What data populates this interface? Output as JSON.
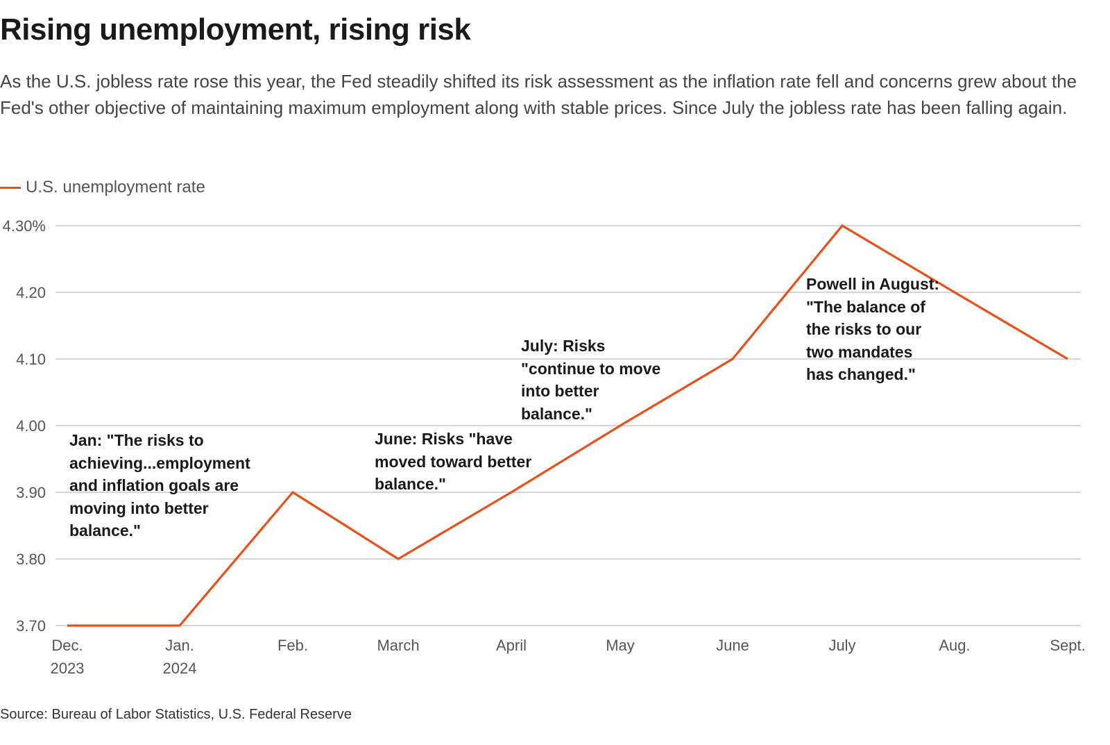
{
  "chart_data": {
    "type": "line",
    "title": "Rising unemployment, rising risk",
    "subtitle": "As the U.S. jobless rate rose this year, the Fed steadily shifted its risk assessment as the inflation rate fell and concerns grew about the Fed's other objective of maintaining maximum employment along with stable prices. Since July the jobless rate has been falling again.",
    "categories": [
      "Dec. 2023",
      "Jan. 2024",
      "Feb.",
      "March",
      "April",
      "May",
      "June",
      "July",
      "Aug.",
      "Sept."
    ],
    "x_tick_labels": [
      [
        "Dec.",
        "2023"
      ],
      [
        "Jan.",
        "2024"
      ],
      [
        "Feb."
      ],
      [
        "March"
      ],
      [
        "April"
      ],
      [
        "May"
      ],
      [
        "June"
      ],
      [
        "July"
      ],
      [
        "Aug."
      ],
      [
        "Sept."
      ]
    ],
    "series": [
      {
        "name": "U.S. unemployment rate",
        "color": "#e8501a",
        "values": [
          3.7,
          3.7,
          3.9,
          3.8,
          3.9,
          4.0,
          4.1,
          4.3,
          4.2,
          4.1
        ]
      }
    ],
    "ylim": [
      3.7,
      4.3
    ],
    "y_ticks": [
      3.7,
      3.8,
      3.9,
      4.0,
      4.1,
      4.2,
      4.3
    ],
    "y_tick_labels": [
      "3.70",
      "3.80",
      "3.90",
      "4.00",
      "4.10",
      "4.20",
      "4.30%"
    ],
    "grid": true,
    "legend": "top-left",
    "annotations": [
      {
        "text": "Jan: \"The risks to\nachieving...employment\nand inflation goals are\nmoving into better\nbalance.\""
      },
      {
        "text": "June: Risks \"have\nmoved toward better\nbalance.\""
      },
      {
        "text": "July: Risks\n\"continue to move\ninto better\nbalance.\""
      },
      {
        "text": "Powell in August:\n\"The balance of\nthe risks to our\ntwo mandates\nhas changed.\""
      }
    ],
    "source": "Source: Bureau of Labor Statistics, U.S. Federal Reserve"
  }
}
